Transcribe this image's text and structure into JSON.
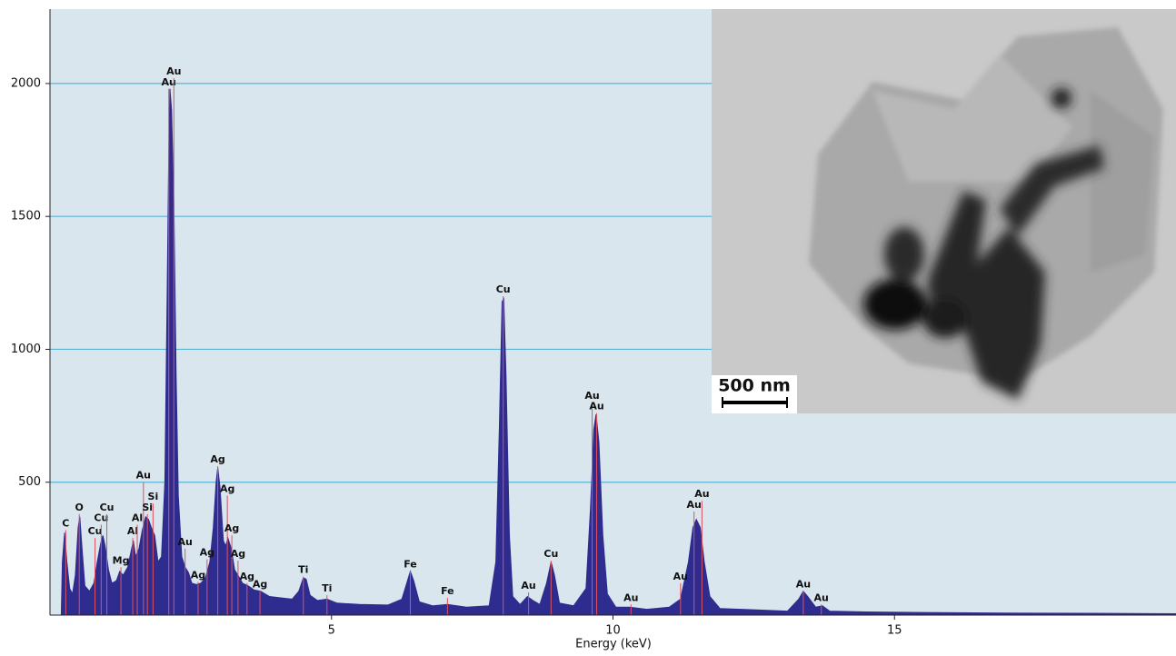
{
  "chart_data": {
    "type": "area",
    "x_label": "Energy (keV)",
    "xlim": [
      0,
      20
    ],
    "ylim": [
      0,
      2280
    ],
    "xticks": [
      5,
      10,
      15
    ],
    "yticks": [
      500,
      1000,
      1500,
      2000
    ],
    "grid": true,
    "grid_color": "#5ab4d6",
    "background": "#dae6ee",
    "color": "#2e2d8f",
    "marker_color": "#e05060",
    "x": [
      0.2,
      0.22,
      0.26,
      0.3,
      0.35,
      0.4,
      0.45,
      0.5,
      0.53,
      0.57,
      0.62,
      0.7,
      0.78,
      0.84,
      0.9,
      0.94,
      0.98,
      1.04,
      1.1,
      1.18,
      1.24,
      1.3,
      1.38,
      1.44,
      1.48,
      1.52,
      1.58,
      1.64,
      1.7,
      1.75,
      1.8,
      1.86,
      1.92,
      1.98,
      2.04,
      2.08,
      2.11,
      2.13,
      2.16,
      2.2,
      2.24,
      2.28,
      2.34,
      2.4,
      2.46,
      2.52,
      2.6,
      2.68,
      2.76,
      2.84,
      2.9,
      2.95,
      2.98,
      3.02,
      3.08,
      3.12,
      3.16,
      3.22,
      3.28,
      3.34,
      3.42,
      3.52,
      3.62,
      3.74,
      3.9,
      4.1,
      4.3,
      4.42,
      4.5,
      4.55,
      4.62,
      4.75,
      4.92,
      5.1,
      5.5,
      6.0,
      6.25,
      6.35,
      6.4,
      6.46,
      6.56,
      6.8,
      7.06,
      7.4,
      7.8,
      7.92,
      7.98,
      8.03,
      8.06,
      8.1,
      8.16,
      8.22,
      8.35,
      8.48,
      8.58,
      8.7,
      8.82,
      8.9,
      8.96,
      9.05,
      9.3,
      9.52,
      9.6,
      9.66,
      9.7,
      9.75,
      9.82,
      9.9,
      10.05,
      10.3,
      10.6,
      11.0,
      11.2,
      11.34,
      11.42,
      11.48,
      11.55,
      11.62,
      11.72,
      11.9,
      12.5,
      13.1,
      13.3,
      13.38,
      13.46,
      13.6,
      13.72,
      13.85,
      14.5,
      15.5,
      17.0,
      18.5,
      20.0
    ],
    "values": [
      0,
      200,
      310,
      200,
      100,
      80,
      150,
      330,
      370,
      250,
      110,
      90,
      120,
      200,
      270,
      300,
      260,
      170,
      120,
      130,
      165,
      150,
      180,
      240,
      280,
      220,
      250,
      320,
      370,
      360,
      330,
      300,
      200,
      220,
      500,
      1200,
      1750,
      1980,
      1900,
      1550,
      900,
      450,
      220,
      180,
      160,
      120,
      115,
      120,
      140,
      200,
      330,
      500,
      555,
      480,
      280,
      260,
      290,
      250,
      170,
      150,
      120,
      110,
      95,
      90,
      70,
      65,
      60,
      90,
      140,
      135,
      75,
      55,
      60,
      45,
      40,
      38,
      60,
      130,
      165,
      130,
      50,
      35,
      40,
      30,
      35,
      200,
      700,
      1180,
      1190,
      900,
      300,
      70,
      40,
      70,
      55,
      40,
      120,
      200,
      150,
      45,
      35,
      100,
      400,
      700,
      755,
      650,
      300,
      80,
      30,
      30,
      22,
      30,
      60,
      200,
      330,
      360,
      330,
      200,
      70,
      25,
      20,
      15,
      60,
      90,
      70,
      30,
      35,
      15,
      12,
      10,
      8,
      7,
      5
    ],
    "annotations": [
      {
        "text": "C",
        "x": 0.28,
        "y": 320
      },
      {
        "text": "O",
        "x": 0.52,
        "y": 380
      },
      {
        "text": "Cu",
        "x": 0.8,
        "y": 290
      },
      {
        "text": "Cu",
        "x": 0.91,
        "y": 340
      },
      {
        "text": "Cu",
        "x": 1.01,
        "y": 380
      },
      {
        "text": "Mg",
        "x": 1.26,
        "y": 180
      },
      {
        "text": "Al",
        "x": 1.47,
        "y": 290
      },
      {
        "text": "Al",
        "x": 1.55,
        "y": 340
      },
      {
        "text": "Au",
        "x": 1.66,
        "y": 500
      },
      {
        "text": "Si",
        "x": 1.73,
        "y": 380
      },
      {
        "text": "Si",
        "x": 1.83,
        "y": 420
      },
      {
        "text": "Au",
        "x": 2.11,
        "y": 1980
      },
      {
        "text": "Au",
        "x": 2.2,
        "y": 2020
      },
      {
        "text": "Au",
        "x": 2.4,
        "y": 250
      },
      {
        "text": "Ag",
        "x": 2.63,
        "y": 125
      },
      {
        "text": "Ag",
        "x": 2.79,
        "y": 210
      },
      {
        "text": "Ag",
        "x": 2.98,
        "y": 560
      },
      {
        "text": "Ag",
        "x": 3.15,
        "y": 450
      },
      {
        "text": "Ag",
        "x": 3.23,
        "y": 300
      },
      {
        "text": "Ag",
        "x": 3.34,
        "y": 205
      },
      {
        "text": "Ag",
        "x": 3.5,
        "y": 120
      },
      {
        "text": "Ag",
        "x": 3.73,
        "y": 90
      },
      {
        "text": "Ti",
        "x": 4.5,
        "y": 145
      },
      {
        "text": "Ti",
        "x": 4.92,
        "y": 75
      },
      {
        "text": "Fe",
        "x": 6.4,
        "y": 165
      },
      {
        "text": "Fe",
        "x": 7.06,
        "y": 65
      },
      {
        "text": "Cu",
        "x": 8.05,
        "y": 1200
      },
      {
        "text": "Au",
        "x": 8.5,
        "y": 85
      },
      {
        "text": "Cu",
        "x": 8.9,
        "y": 205
      },
      {
        "text": "Au",
        "x": 9.63,
        "y": 800
      },
      {
        "text": "Au",
        "x": 9.71,
        "y": 760
      },
      {
        "text": "Au",
        "x": 10.32,
        "y": 40
      },
      {
        "text": "Au",
        "x": 11.2,
        "y": 120
      },
      {
        "text": "Au",
        "x": 11.44,
        "y": 390
      },
      {
        "text": "Au",
        "x": 11.58,
        "y": 430
      },
      {
        "text": "Au",
        "x": 13.38,
        "y": 90
      },
      {
        "text": "Au",
        "x": 13.7,
        "y": 40
      }
    ],
    "inset": {
      "scale_label": "500 nm"
    }
  }
}
